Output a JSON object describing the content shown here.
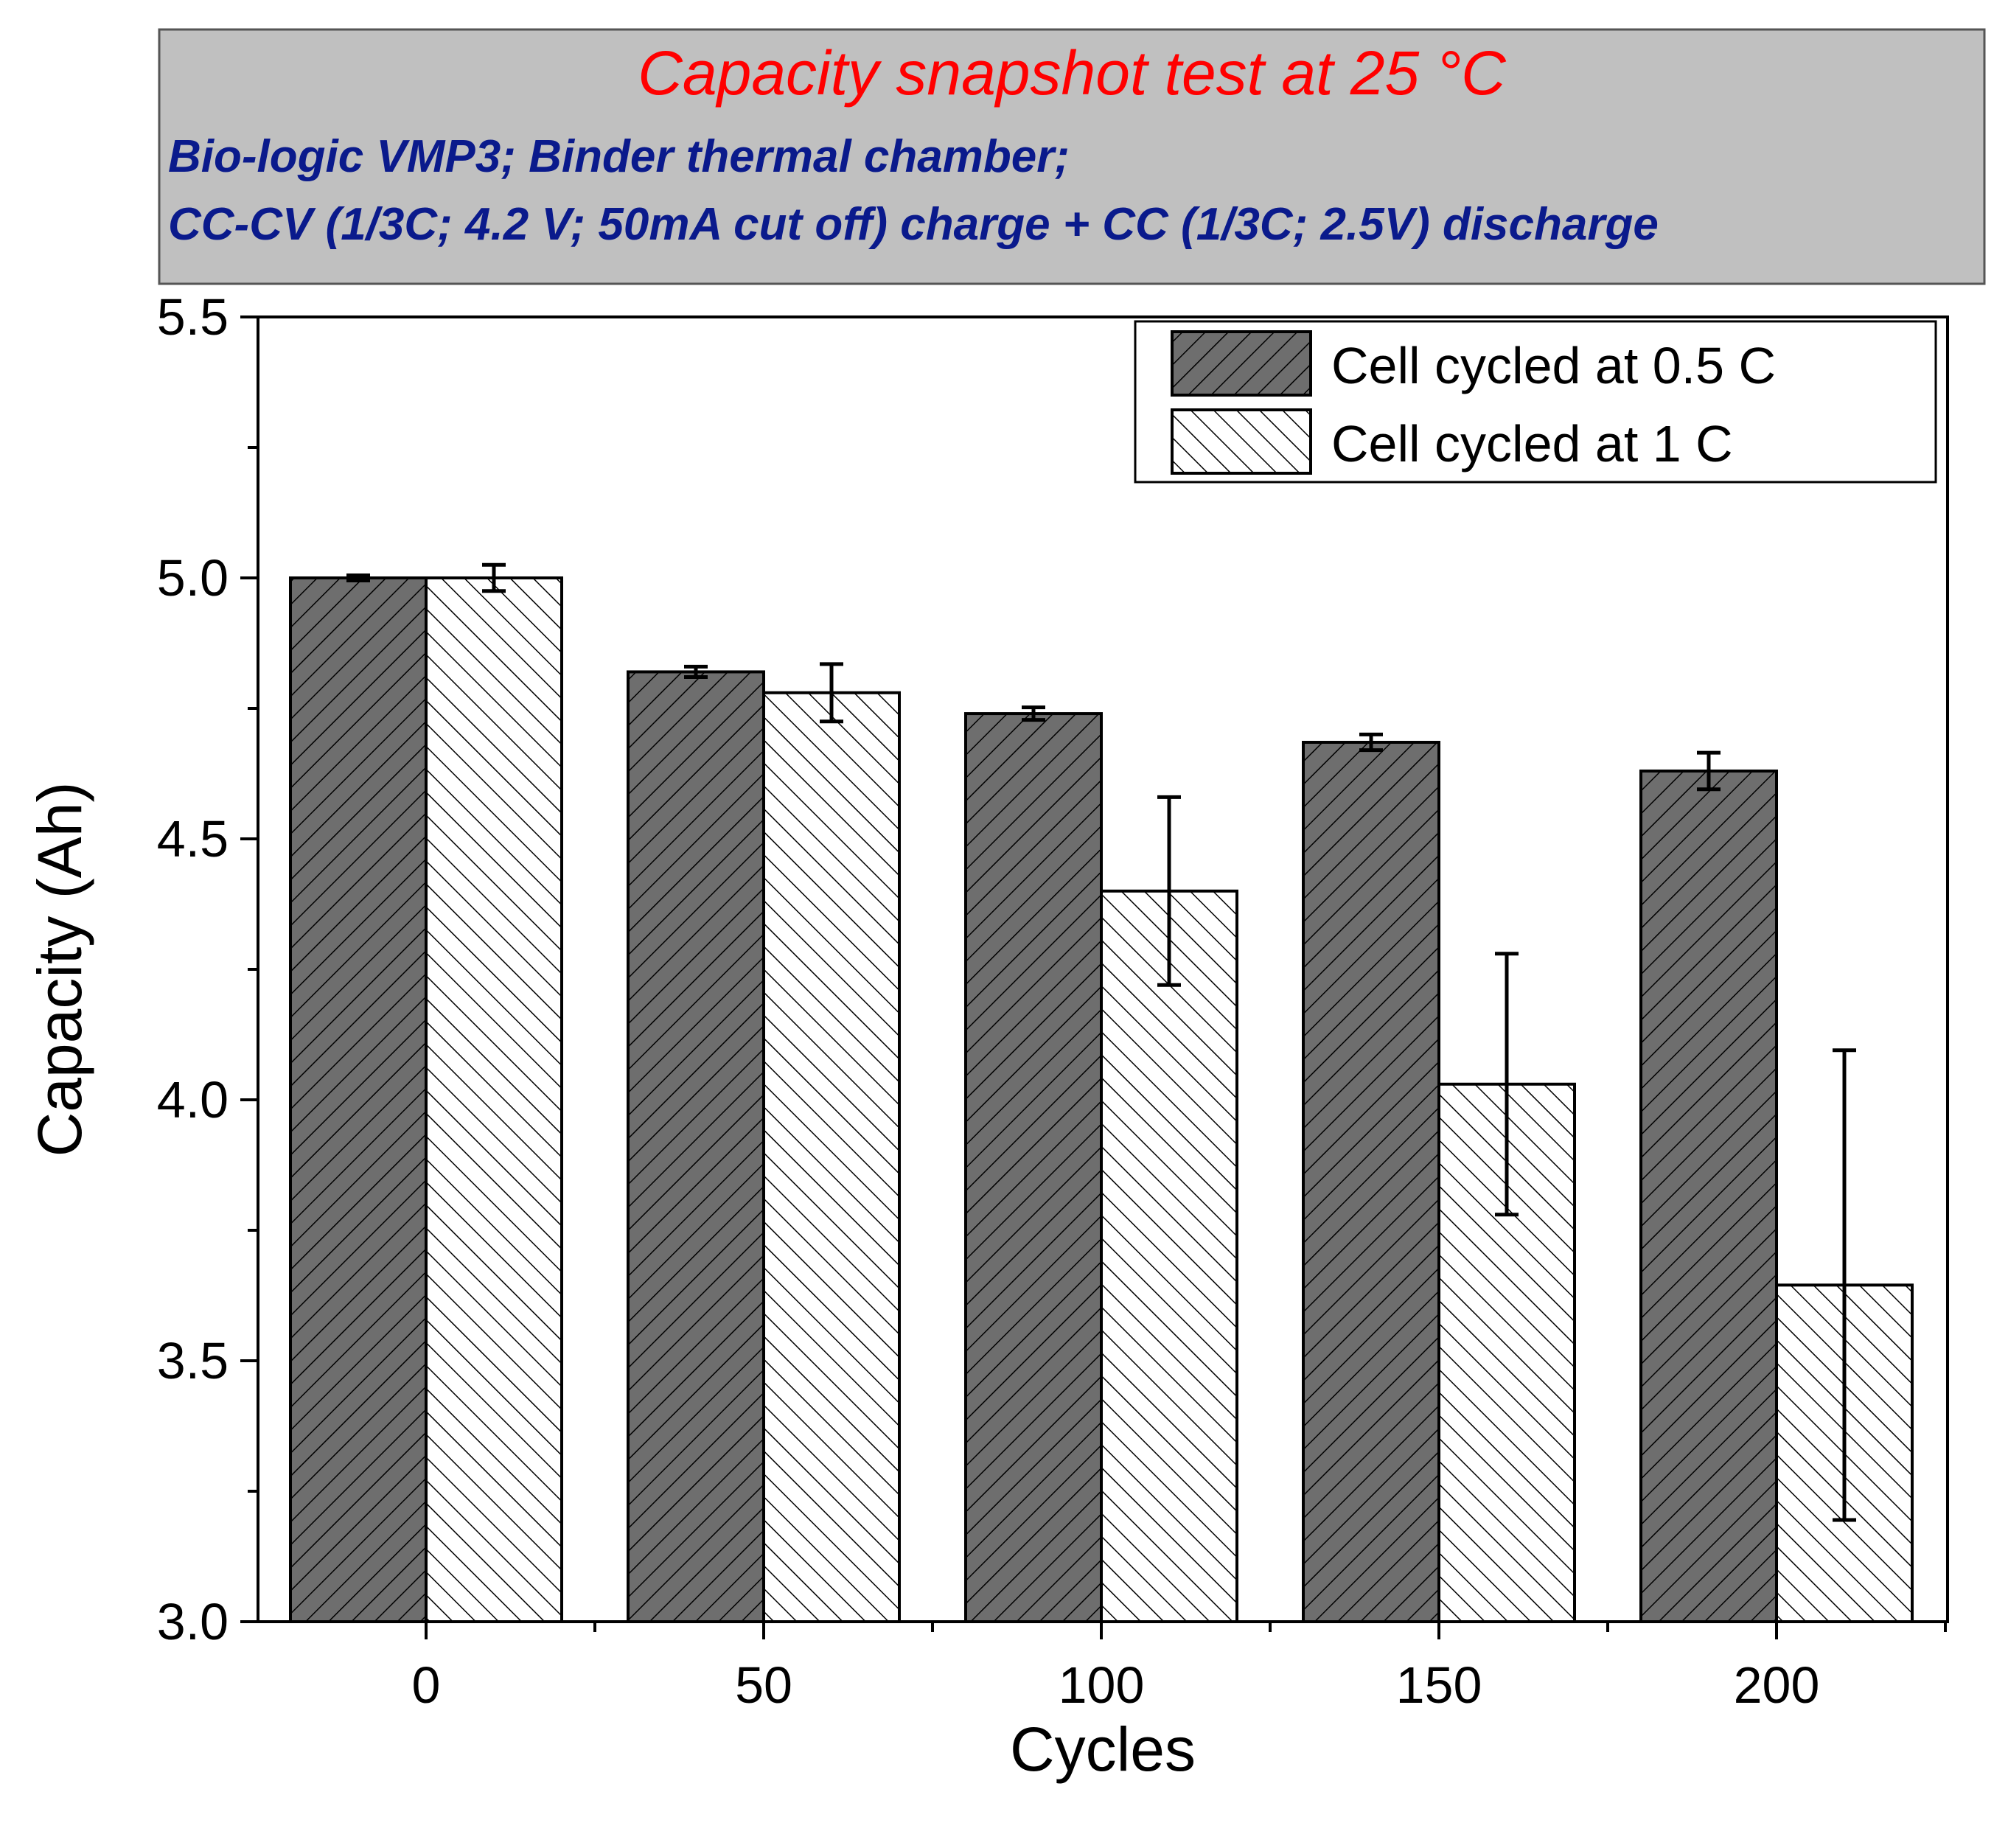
{
  "header": {
    "title": "Capacity snapshot test at 25 °C",
    "subtitle_line1": "Bio-logic VMP3; Binder thermal chamber;",
    "subtitle_line2": "CC-CV (1/3C; 4.2 V; 50mA cut off) charge + CC (1/3C;  2.5V) discharge",
    "title_color": "#ff0000",
    "subtitle_color": "#0a1a8c",
    "background_color": "#c0c0c0"
  },
  "chart_data": {
    "type": "bar",
    "title": "Capacity snapshot test at 25 °C",
    "xlabel": "Cycles",
    "ylabel": "Capacity (Ah)",
    "categories": [
      "0",
      "50",
      "100",
      "150",
      "200"
    ],
    "ylim": [
      3.0,
      5.5
    ],
    "yticks": [
      "3.0",
      "3.5",
      "4.0",
      "4.5",
      "5.0",
      "5.5"
    ],
    "legend_position": "top-right",
    "series": [
      {
        "name": "Cell cycled at 0.5 C",
        "values": [
          5.0,
          4.82,
          4.74,
          4.685,
          4.63
        ],
        "errors": [
          0.005,
          0.01,
          0.012,
          0.015,
          0.035
        ],
        "fill": "#6e6e6e",
        "hatch": "forward"
      },
      {
        "name": "Cell cycled at 1 C",
        "values": [
          5.0,
          4.78,
          4.4,
          4.03,
          3.645
        ],
        "errors": [
          0.025,
          0.055,
          0.18,
          0.25,
          0.45
        ],
        "fill": "#ffffff",
        "hatch": "backward"
      }
    ]
  }
}
